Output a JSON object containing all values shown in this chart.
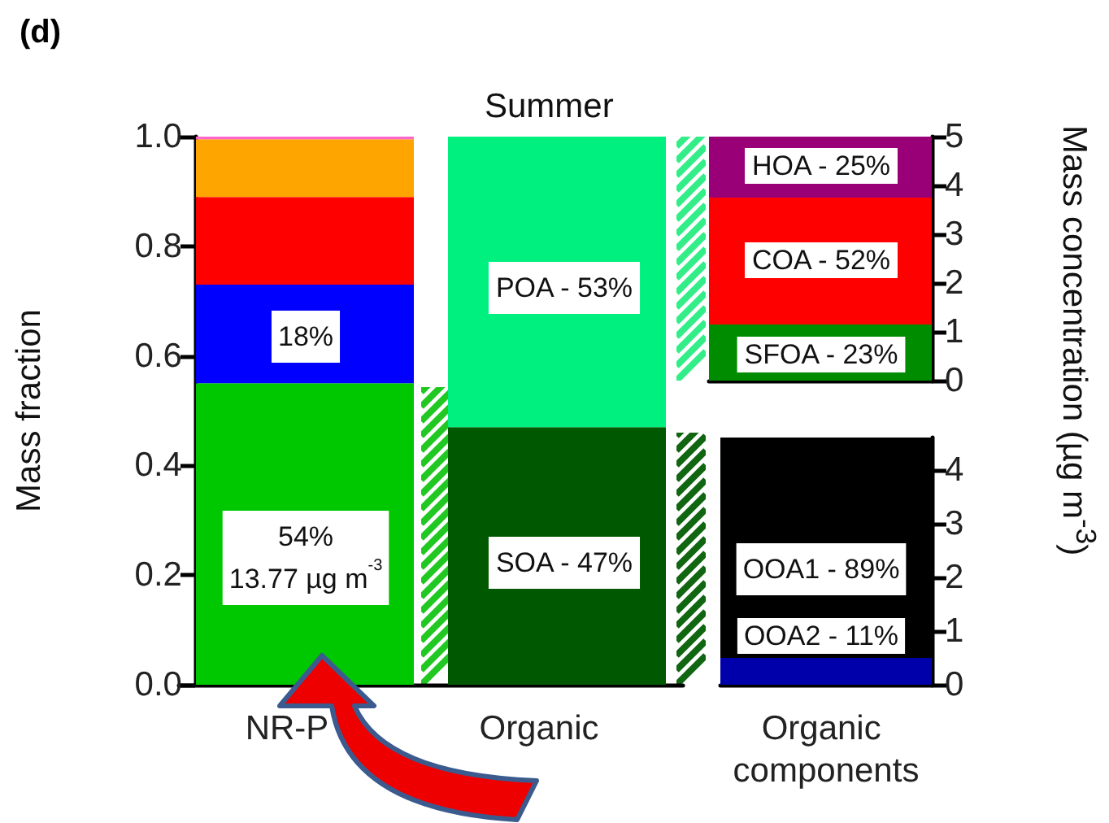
{
  "chart_data": [
    {
      "type": "bar",
      "title": "Summer",
      "ylabel": "Mass fraction",
      "categories": [
        "NR-P",
        "Organic"
      ],
      "stacked": true,
      "ylim": [
        0,
        1
      ],
      "yticks": [
        {
          "value": 0,
          "label": "0.0"
        },
        {
          "value": 0.2,
          "label": "0.2"
        },
        {
          "value": 0.4,
          "label": "0.4"
        },
        {
          "value": 0.6,
          "label": "0.6"
        },
        {
          "value": 0.8,
          "label": "0.8"
        },
        {
          "value": 1,
          "label": "1.0"
        }
      ],
      "annotations": [
        "(d)",
        "54%\n13.77 µg m$^{-3}$",
        "18%",
        "SOA - 47%",
        "POA - 53%"
      ],
      "series": [
        {
          "color": "#00c800",
          "values": [
            0.55,
            null
          ]
        },
        {
          "color": "#0000ff",
          "values": [
            0.18,
            null
          ]
        },
        {
          "color": "#ff0000",
          "values": [
            0.16,
            null
          ]
        },
        {
          "color": "#ffa500",
          "values": [
            0.105,
            null
          ]
        },
        {
          "color": "#ff66cc",
          "values": [
            0.005,
            null
          ]
        },
        {
          "color": "#005800",
          "values": [
            null,
            0.47
          ]
        },
        {
          "color": "#00f080",
          "values": [
            null,
            0.53
          ]
        }
      ]
    },
    {
      "type": "bar",
      "categories": [
        "Organic components"
      ],
      "tick_labels": "y",
      "stacked": true,
      "y2lim": [
        0,
        5
      ],
      "y2ticks": [
        0,
        1,
        2,
        3,
        4,
        5
      ],
      "annotations": [
        "SFOA - 23%",
        "COA - 52%",
        "HOA - 25%"
      ],
      "series": [
        {
          "color": "#008c00",
          "axis": "y2",
          "values": [
            1.15
          ]
        },
        {
          "color": "#ff0000",
          "axis": "y2",
          "values": [
            2.6
          ]
        },
        {
          "color": "#990077",
          "axis": "y2",
          "values": [
            1.25
          ]
        }
      ]
    },
    {
      "type": "bar",
      "categories": [
        "Organic components"
      ],
      "stacked": true,
      "y2lim": [
        0,
        4.6
      ],
      "y2ticks": [
        0,
        1,
        2,
        3,
        4
      ],
      "y2label": "Mass concentration (µg m$^{-3}$)",
      "annotations": [
        "OOA2 - 11%",
        "OOA1 - 89%"
      ],
      "series": [
        {
          "color": "#0000aa",
          "axis": "y2",
          "values": [
            0.5
          ]
        },
        {
          "color": "#000000",
          "axis": "y2",
          "values": [
            4.1
          ]
        }
      ]
    }
  ]
}
